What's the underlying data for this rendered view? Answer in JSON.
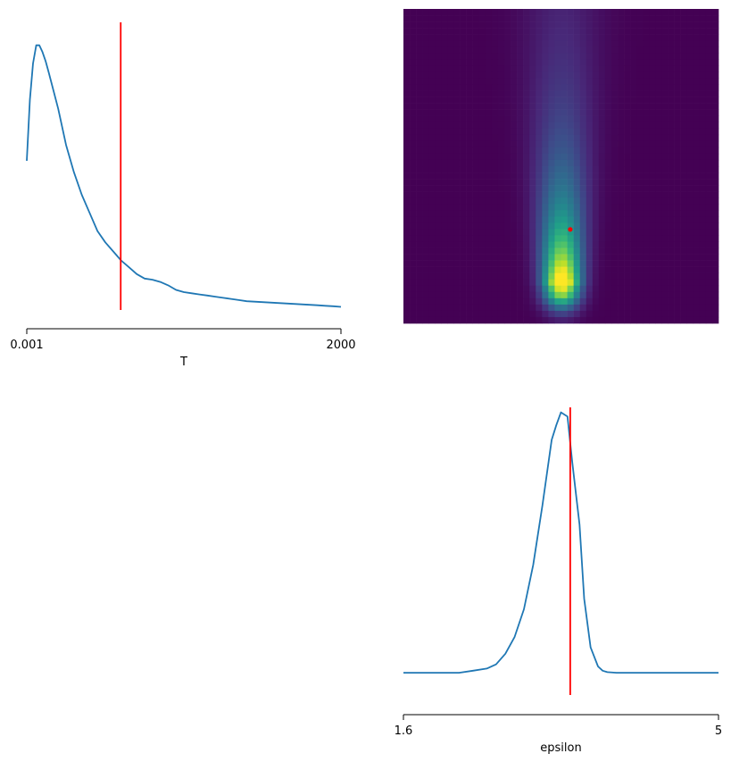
{
  "chart_data": [
    {
      "type": "line",
      "panel": "top-left",
      "xlabel": "T",
      "x_ticks": [
        "0.001",
        "2000"
      ],
      "xlim": [
        0.001,
        2000
      ],
      "x_scale": "linear",
      "yaxis_visible": false,
      "grid": false,
      "series": [
        {
          "color": "#1f77b4",
          "x": [
            0.001,
            20,
            40,
            60,
            80,
            100,
            120,
            140,
            170,
            200,
            250,
            300,
            350,
            400,
            450,
            500,
            550,
            600,
            650,
            700,
            750,
            800,
            850,
            900,
            950,
            1000,
            1050,
            1100,
            1150,
            1200,
            1250,
            1300,
            1350,
            1400,
            1450,
            1500,
            1550,
            1600,
            1650,
            1700,
            1750,
            1800,
            1850,
            1900,
            1950,
            2000
          ],
          "y": [
            0.49,
            0.76,
            0.92,
            1.0,
            1.0,
            0.97,
            0.93,
            0.88,
            0.8,
            0.72,
            0.56,
            0.44,
            0.34,
            0.26,
            0.18,
            0.13,
            0.09,
            0.05,
            0.02,
            -0.01,
            -0.03,
            -0.035,
            -0.045,
            -0.06,
            -0.08,
            -0.09,
            -0.095,
            -0.1,
            -0.105,
            -0.11,
            -0.115,
            -0.12,
            -0.125,
            -0.13,
            -0.132,
            -0.134,
            -0.136,
            -0.138,
            -0.14,
            -0.142,
            -0.144,
            -0.146,
            -0.148,
            -0.15,
            -0.152,
            -0.155
          ]
        }
      ],
      "ylim": [
        -0.22,
        1.05
      ],
      "vline": {
        "x": 598,
        "color": "#ff0000"
      }
    },
    {
      "type": "heatmap",
      "panel": "top-right",
      "colormap": "viridis",
      "axes_visible": false,
      "grid_cols": 50,
      "grid_rows": 50,
      "x_range": [
        1.6,
        5
      ],
      "y_range": [
        0.001,
        2000
      ],
      "peak": {
        "x": 3.31,
        "y": 240
      },
      "marker": {
        "x": 3.4,
        "y": 598,
        "color": "#ff0000"
      }
    },
    {
      "type": "line",
      "panel": "bottom-right",
      "xlabel": "epsilon",
      "x_ticks": [
        "1.6",
        "5"
      ],
      "xlim": [
        1.6,
        5
      ],
      "yaxis_visible": false,
      "grid": false,
      "series": [
        {
          "color": "#1f77b4",
          "x": [
            1.6,
            2.0,
            2.2,
            2.35,
            2.5,
            2.6,
            2.7,
            2.8,
            2.9,
            3.0,
            3.1,
            3.2,
            3.25,
            3.3,
            3.37,
            3.42,
            3.5,
            3.55,
            3.62,
            3.7,
            3.75,
            3.8,
            3.9,
            4.0,
            4.2,
            4.5,
            5.0
          ],
          "y": [
            0.0,
            0.0,
            0.0,
            0.01,
            0.02,
            0.04,
            0.09,
            0.17,
            0.3,
            0.51,
            0.79,
            1.1,
            1.17,
            1.23,
            1.21,
            1.0,
            0.7,
            0.35,
            0.12,
            0.03,
            0.01,
            0.003,
            0.0,
            0.0,
            0.0,
            0.0,
            0.0
          ]
        }
      ],
      "ylim": [
        -0.05,
        1.3
      ],
      "vline": {
        "x": 3.4,
        "color": "#ff0000"
      }
    }
  ]
}
